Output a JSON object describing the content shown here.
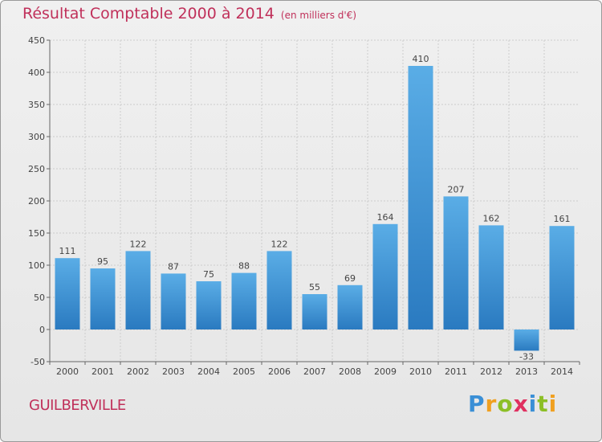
{
  "header": {
    "title": "Résultat Comptable 2000 à 2014",
    "subtitle": "(en milliers d'€)"
  },
  "footer": {
    "city": "GUILBERVILLE",
    "logo": {
      "letters": [
        "P",
        "r",
        "o",
        "x",
        "i",
        "t",
        "i"
      ],
      "colors": [
        "#3a8fd6",
        "#f0a020",
        "#8cbf26",
        "#e03060",
        "#3a8fd6",
        "#8cbf26",
        "#f0a020"
      ]
    }
  },
  "chart_data": {
    "type": "bar",
    "categories": [
      "2000",
      "2001",
      "2002",
      "2003",
      "2004",
      "2005",
      "2006",
      "2007",
      "2008",
      "2009",
      "2010",
      "2011",
      "2012",
      "2013",
      "2014"
    ],
    "values": [
      111,
      95,
      122,
      87,
      75,
      88,
      122,
      55,
      69,
      164,
      410,
      207,
      162,
      -33,
      161
    ],
    "data_labels": [
      "111",
      "95",
      "122",
      "87",
      "75",
      "88",
      "122",
      "55",
      "69",
      "164",
      "410",
      "207",
      "162",
      "-33",
      "161"
    ],
    "yticks": [
      -50,
      0,
      50,
      100,
      150,
      200,
      250,
      300,
      350,
      400,
      450
    ],
    "ylim": [
      -50,
      450
    ],
    "grid": true,
    "bar_color_top": "#5aade6",
    "bar_color_bottom": "#2a7ac0",
    "text_color": "#444444",
    "grid_color": "#cccccc"
  }
}
